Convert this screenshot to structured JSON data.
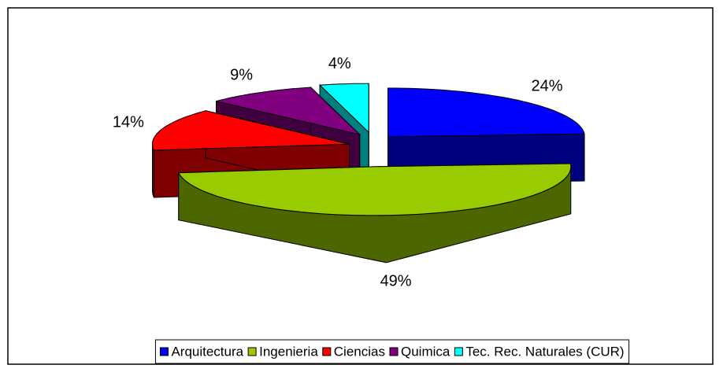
{
  "chart_data": {
    "type": "pie3d",
    "categories": [
      "Arquitectura",
      "Ingenieria",
      "Ciencias",
      "Quimica",
      "Tec. Rec. Naturales (CUR)"
    ],
    "values": [
      24,
      49,
      14,
      9,
      4
    ],
    "value_labels": [
      "24%",
      "49%",
      "14%",
      "9%",
      "4%"
    ],
    "colors": [
      "#0000ff",
      "#99cc00",
      "#ff0000",
      "#800080",
      "#00ffff"
    ],
    "legend": "bottom"
  }
}
